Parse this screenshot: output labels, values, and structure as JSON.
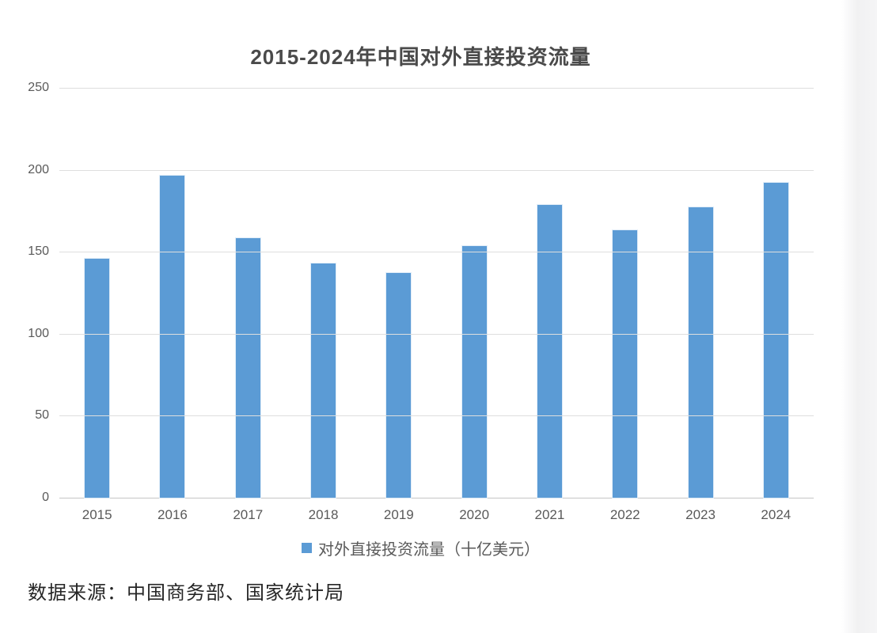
{
  "source_note": "数据来源：中国商务部、国家统计局",
  "colors": {
    "bar": "#5B9BD5",
    "title_text": "#4a4a4a",
    "axis_text": "#595959",
    "gridline": "#dedede",
    "axis_line": "#c6c6c6",
    "page_edge_strip": "#f2f2f3"
  },
  "chart_data": {
    "type": "bar",
    "title": "2015-2024年中国对外直接投资流量",
    "categories": [
      "2015",
      "2016",
      "2017",
      "2018",
      "2019",
      "2020",
      "2021",
      "2022",
      "2023",
      "2024"
    ],
    "values": [
      145.7,
      196.2,
      158.3,
      143.0,
      136.9,
      153.7,
      178.8,
      163.1,
      177.3,
      192.2
    ],
    "series_name": "对外直接投资流量（十亿美元）",
    "xlabel": "",
    "ylabel": "",
    "ylim": [
      0,
      250
    ],
    "yticks": [
      0,
      50,
      100,
      150,
      200,
      250
    ],
    "grid": true,
    "legend_position": "bottom",
    "bar_color": "#5B9BD5"
  }
}
